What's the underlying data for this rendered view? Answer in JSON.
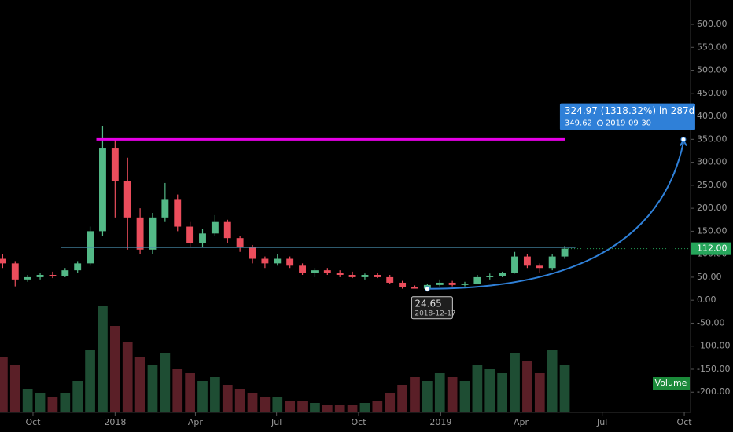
{
  "chart_data": {
    "type": "candlestick",
    "x": [
      "2017-08-28",
      "2017-09-11",
      "2017-09-25",
      "2017-10-09",
      "2017-10-23",
      "2017-11-06",
      "2017-11-20",
      "2017-12-04",
      "2017-12-18",
      "2018-01-01",
      "2018-01-15",
      "2018-01-29",
      "2018-02-12",
      "2018-02-26",
      "2018-03-12",
      "2018-03-26",
      "2018-04-09",
      "2018-04-23",
      "2018-05-07",
      "2018-05-21",
      "2018-06-04",
      "2018-06-18",
      "2018-07-02",
      "2018-07-16",
      "2018-07-30",
      "2018-08-13",
      "2018-08-27",
      "2018-09-10",
      "2018-09-24",
      "2018-10-08",
      "2018-10-22",
      "2018-11-05",
      "2018-11-19",
      "2018-12-03",
      "2018-12-17",
      "2018-12-31",
      "2019-01-14",
      "2019-01-28",
      "2019-02-11",
      "2019-02-25",
      "2019-03-11",
      "2019-03-25",
      "2019-04-08",
      "2019-04-22",
      "2019-05-06",
      "2019-05-20"
    ],
    "open": [
      90,
      80,
      45,
      50,
      55,
      52,
      65,
      80,
      150,
      330,
      260,
      180,
      110,
      180,
      220,
      160,
      125,
      145,
      170,
      135,
      115,
      90,
      80,
      90,
      75,
      60,
      65,
      60,
      55,
      50,
      55,
      50,
      38,
      28,
      25,
      33,
      38,
      33,
      36,
      50,
      52,
      60,
      95,
      75,
      70,
      95
    ],
    "high": [
      100,
      85,
      55,
      60,
      62,
      70,
      85,
      160,
      379,
      350,
      310,
      200,
      190,
      255,
      230,
      170,
      155,
      185,
      175,
      140,
      120,
      95,
      100,
      95,
      80,
      70,
      70,
      65,
      62,
      58,
      60,
      55,
      42,
      32,
      35,
      45,
      42,
      40,
      55,
      58,
      62,
      105,
      100,
      80,
      100,
      118
    ],
    "low": [
      70,
      30,
      40,
      45,
      48,
      50,
      60,
      75,
      140,
      180,
      110,
      100,
      100,
      170,
      150,
      115,
      115,
      140,
      125,
      105,
      80,
      70,
      75,
      70,
      55,
      50,
      55,
      50,
      48,
      45,
      48,
      35,
      25,
      26,
      24.65,
      30,
      30,
      30,
      35,
      45,
      50,
      58,
      70,
      60,
      65,
      90
    ],
    "close": [
      80,
      45,
      50,
      55,
      52,
      65,
      80,
      150,
      330,
      260,
      180,
      110,
      180,
      220,
      160,
      125,
      145,
      170,
      135,
      115,
      90,
      80,
      90,
      75,
      60,
      65,
      60,
      55,
      50,
      55,
      50,
      38,
      28,
      25,
      33,
      38,
      33,
      36,
      50,
      52,
      60,
      95,
      75,
      70,
      95,
      112
    ],
    "volume": [
      70,
      60,
      30,
      25,
      20,
      25,
      40,
      80,
      135,
      110,
      90,
      70,
      60,
      75,
      55,
      50,
      40,
      45,
      35,
      30,
      25,
      20,
      20,
      15,
      15,
      12,
      10,
      10,
      10,
      12,
      15,
      25,
      35,
      45,
      40,
      50,
      45,
      40,
      60,
      55,
      50,
      75,
      65,
      50,
      80,
      60
    ],
    "up_color": "#53b987",
    "down_color": "#eb4d5c",
    "volume_up_color": "#1e4d33",
    "volume_down_color": "#5a1f27",
    "ylim": [
      -244,
      653
    ],
    "yticks": [
      {
        "value": 600,
        "label": "600.00"
      },
      {
        "value": 550,
        "label": "550.00"
      },
      {
        "value": 500,
        "label": "500.00"
      },
      {
        "value": 450,
        "label": "450.00"
      },
      {
        "value": 400,
        "label": "400.00"
      },
      {
        "value": 350,
        "label": "350.00"
      },
      {
        "value": 300,
        "label": "300.00"
      },
      {
        "value": 250,
        "label": "250.00"
      },
      {
        "value": 200,
        "label": "200.00"
      },
      {
        "value": 150,
        "label": "150.00"
      },
      {
        "value": 100,
        "label": "100.00"
      },
      {
        "value": 50,
        "label": "50.00"
      },
      {
        "value": 0,
        "label": "0.00"
      },
      {
        "value": -50,
        "label": "-50.00"
      },
      {
        "value": -100,
        "label": "-100.00"
      },
      {
        "value": -150,
        "label": "-150.00"
      },
      {
        "value": -200,
        "label": "-200.00"
      }
    ],
    "xlim": [
      "2017-08-25",
      "2019-10-08"
    ],
    "xticks": [
      {
        "value": "2017-10-01",
        "label": "Oct"
      },
      {
        "value": "2018-01-01",
        "label": "2018"
      },
      {
        "value": "2018-04-01",
        "label": "Apr"
      },
      {
        "value": "2018-07-01",
        "label": "Jul"
      },
      {
        "value": "2018-10-01",
        "label": "Oct"
      },
      {
        "value": "2019-01-01",
        "label": "2019"
      },
      {
        "value": "2019-04-01",
        "label": "Apr"
      },
      {
        "value": "2019-07-01",
        "label": "Jul"
      },
      {
        "value": "2019-10-01",
        "label": "Oct"
      }
    ],
    "hlines": [
      {
        "value": 350,
        "from": "2017-12-11",
        "to": "2019-05-20",
        "color": "#e600e6"
      },
      {
        "value": 115,
        "from": "2017-11-01",
        "to": "2019-06-01",
        "color": "#4a8fb0"
      }
    ],
    "last_price": {
      "value": 112,
      "label": "112.00",
      "color": "#26a65b"
    },
    "projection": {
      "from": {
        "x": "2018-12-17",
        "y": 24.65
      },
      "to": {
        "x": "2019-09-30",
        "y": 349.62
      },
      "change_label": "324.97 (1318.32%) in 287d",
      "color": "#2f80d8"
    },
    "volume_label": "Volume"
  }
}
